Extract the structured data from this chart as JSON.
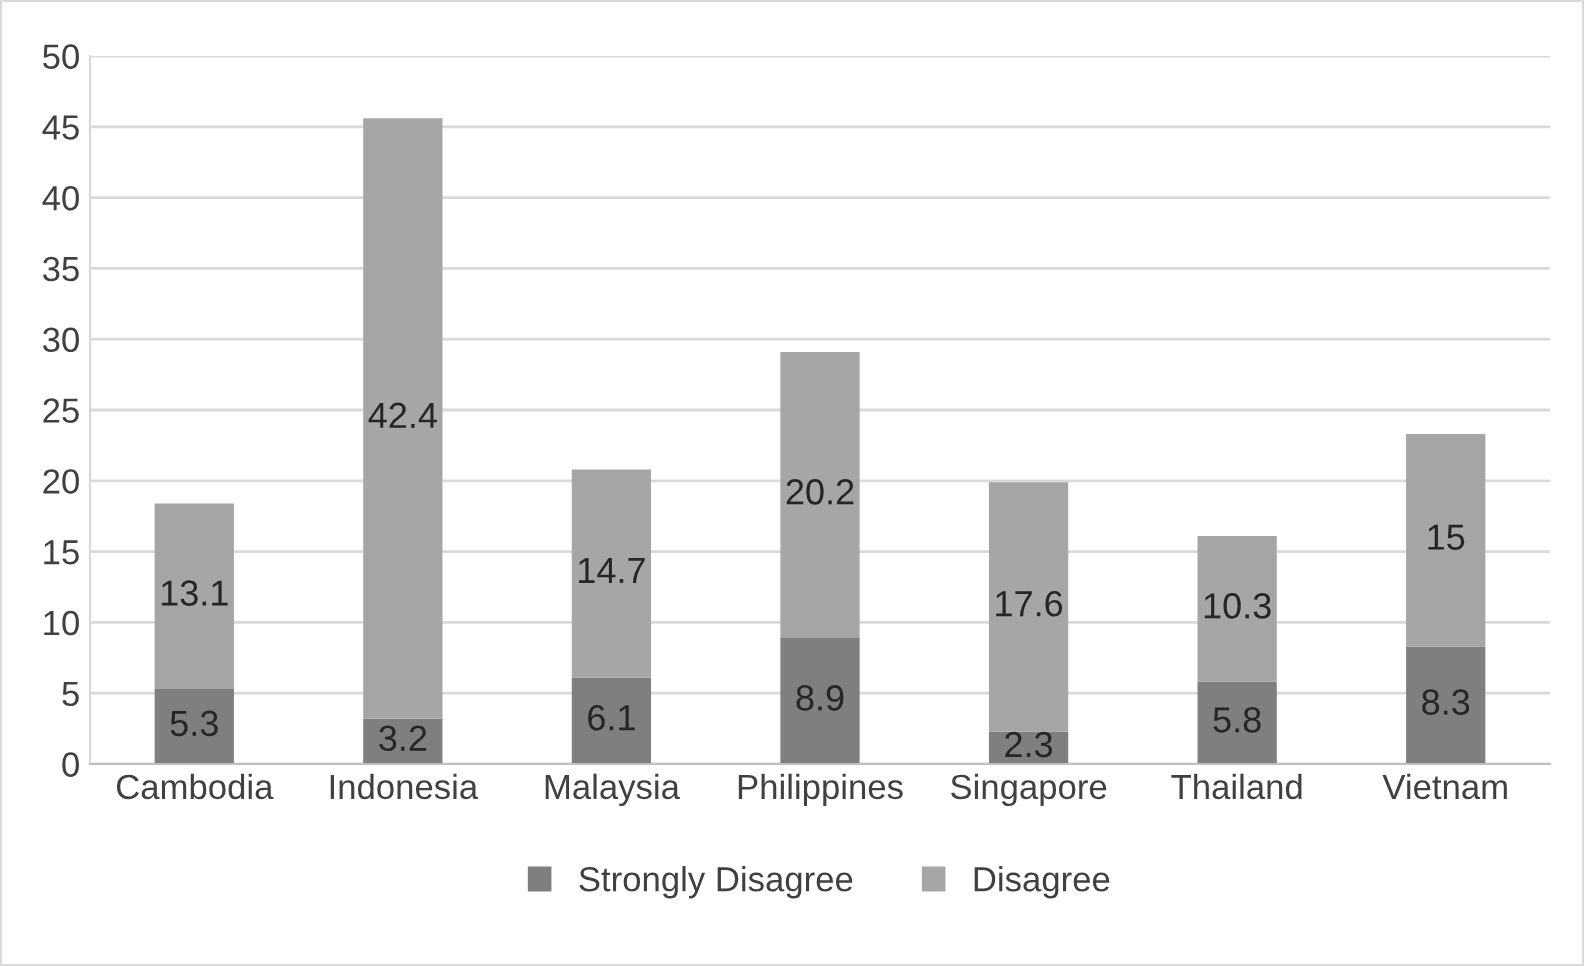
{
  "chart_data": {
    "type": "bar",
    "stacked": true,
    "categories": [
      "Cambodia",
      "Indonesia",
      "Malaysia",
      "Philippines",
      "Singapore",
      "Thailand",
      "Vietnam"
    ],
    "series": [
      {
        "name": "Strongly Disagree",
        "color": "#7f7f7f",
        "values": [
          5.3,
          3.2,
          6.1,
          8.9,
          2.3,
          5.8,
          8.3
        ]
      },
      {
        "name": "Disagree",
        "color": "#a6a6a6",
        "values": [
          13.1,
          42.4,
          14.7,
          20.2,
          17.6,
          10.3,
          15
        ]
      }
    ],
    "ylim": [
      0,
      50
    ],
    "yticks": [
      0,
      5,
      10,
      15,
      20,
      25,
      30,
      35,
      40,
      45,
      50
    ],
    "grid": "y",
    "legend": "bottom",
    "data_labels": true
  }
}
